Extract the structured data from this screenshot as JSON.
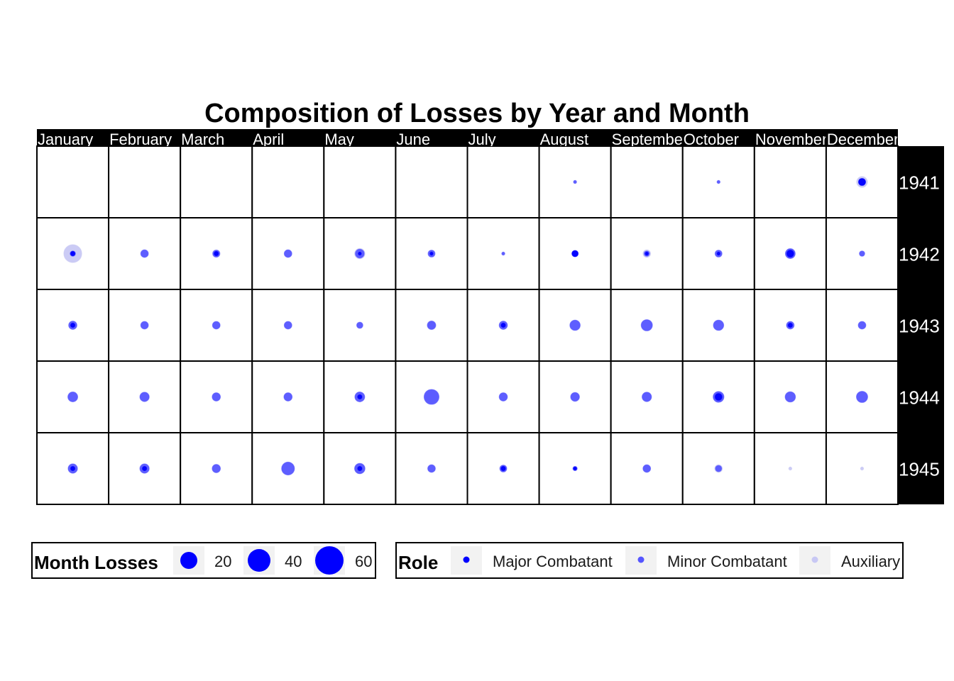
{
  "chart_data": {
    "type": "scatter",
    "title": "Composition of Losses by Year and Month",
    "columns": [
      "January",
      "February",
      "March",
      "April",
      "May",
      "June",
      "July",
      "August",
      "September",
      "October",
      "November",
      "December"
    ],
    "rows": [
      "1941",
      "1942",
      "1943",
      "1944",
      "1945"
    ],
    "roles": [
      "Major Combatant",
      "Minor Combatant",
      "Auxiliary"
    ],
    "colors": {
      "Major Combatant": "#0000ff",
      "Minor Combatant": "#5555ff",
      "Auxiliary": "#c8c8f4",
      "strip_background": "#000000",
      "strip_text": "#ffffff"
    },
    "size_legend": {
      "title": "Month Losses",
      "breaks": [
        20,
        40,
        60
      ]
    },
    "role_legend": {
      "title": "Role",
      "labels": [
        "Major Combatant",
        "Minor Combatant",
        "Auxiliary"
      ]
    },
    "series": [
      {
        "name": "Auxiliary",
        "points": [
          {
            "year": "1941",
            "month": "December",
            "value": 12
          },
          {
            "year": "1942",
            "month": "January",
            "value": 33
          },
          {
            "year": "1942",
            "month": "March",
            "value": 6
          },
          {
            "year": "1942",
            "month": "May",
            "value": 11
          },
          {
            "year": "1942",
            "month": "September",
            "value": 6
          },
          {
            "year": "1942",
            "month": "November",
            "value": 9
          },
          {
            "year": "1943",
            "month": "June",
            "value": 8
          },
          {
            "year": "1944",
            "month": "June",
            "value": 14
          },
          {
            "year": "1944",
            "month": "September",
            "value": 9
          },
          {
            "year": "1944",
            "month": "October",
            "value": 11
          },
          {
            "year": "1945",
            "month": "May",
            "value": 11
          },
          {
            "year": "1945",
            "month": "October",
            "value": 6
          },
          {
            "year": "1945",
            "month": "November",
            "value": 1
          },
          {
            "year": "1945",
            "month": "December",
            "value": 1
          }
        ]
      },
      {
        "name": "Minor Combatant",
        "points": [
          {
            "year": "1941",
            "month": "August",
            "value": 1
          },
          {
            "year": "1941",
            "month": "October",
            "value": 1
          },
          {
            "year": "1941",
            "month": "December",
            "value": 5
          },
          {
            "year": "1942",
            "month": "January",
            "value": 3
          },
          {
            "year": "1942",
            "month": "February",
            "value": 6
          },
          {
            "year": "1942",
            "month": "March",
            "value": 5
          },
          {
            "year": "1942",
            "month": "April",
            "value": 6
          },
          {
            "year": "1942",
            "month": "May",
            "value": 8
          },
          {
            "year": "1942",
            "month": "June",
            "value": 5
          },
          {
            "year": "1942",
            "month": "July",
            "value": 1
          },
          {
            "year": "1942",
            "month": "August",
            "value": 4
          },
          {
            "year": "1942",
            "month": "September",
            "value": 3
          },
          {
            "year": "1942",
            "month": "October",
            "value": 5
          },
          {
            "year": "1942",
            "month": "November",
            "value": 10
          },
          {
            "year": "1942",
            "month": "December",
            "value": 3
          },
          {
            "year": "1943",
            "month": "January",
            "value": 7
          },
          {
            "year": "1943",
            "month": "February",
            "value": 6
          },
          {
            "year": "1943",
            "month": "March",
            "value": 6
          },
          {
            "year": "1943",
            "month": "April",
            "value": 6
          },
          {
            "year": "1943",
            "month": "May",
            "value": 4
          },
          {
            "year": "1943",
            "month": "June",
            "value": 7
          },
          {
            "year": "1943",
            "month": "July",
            "value": 7
          },
          {
            "year": "1943",
            "month": "August",
            "value": 11
          },
          {
            "year": "1943",
            "month": "September",
            "value": 13
          },
          {
            "year": "1943",
            "month": "October",
            "value": 11
          },
          {
            "year": "1943",
            "month": "November",
            "value": 6
          },
          {
            "year": "1943",
            "month": "December",
            "value": 6
          },
          {
            "year": "1944",
            "month": "January",
            "value": 10
          },
          {
            "year": "1944",
            "month": "February",
            "value": 9
          },
          {
            "year": "1944",
            "month": "March",
            "value": 7
          },
          {
            "year": "1944",
            "month": "April",
            "value": 7
          },
          {
            "year": "1944",
            "month": "May",
            "value": 10
          },
          {
            "year": "1944",
            "month": "June",
            "value": 23
          },
          {
            "year": "1944",
            "month": "July",
            "value": 7
          },
          {
            "year": "1944",
            "month": "August",
            "value": 8
          },
          {
            "year": "1944",
            "month": "September",
            "value": 9
          },
          {
            "year": "1944",
            "month": "October",
            "value": 12
          },
          {
            "year": "1944",
            "month": "November",
            "value": 11
          },
          {
            "year": "1944",
            "month": "December",
            "value": 13
          },
          {
            "year": "1945",
            "month": "January",
            "value": 9
          },
          {
            "year": "1945",
            "month": "February",
            "value": 9
          },
          {
            "year": "1945",
            "month": "March",
            "value": 7
          },
          {
            "year": "1945",
            "month": "April",
            "value": 17
          },
          {
            "year": "1945",
            "month": "May",
            "value": 11
          },
          {
            "year": "1945",
            "month": "June",
            "value": 6
          },
          {
            "year": "1945",
            "month": "July",
            "value": 5
          },
          {
            "year": "1945",
            "month": "August",
            "value": 2
          },
          {
            "year": "1945",
            "month": "September",
            "value": 6
          },
          {
            "year": "1945",
            "month": "October",
            "value": 4
          }
        ]
      },
      {
        "name": "Major Combatant",
        "points": [
          {
            "year": "1941",
            "month": "December",
            "value": 5
          },
          {
            "year": "1942",
            "month": "January",
            "value": 2
          },
          {
            "year": "1942",
            "month": "March",
            "value": 2
          },
          {
            "year": "1942",
            "month": "May",
            "value": 1
          },
          {
            "year": "1942",
            "month": "June",
            "value": 1
          },
          {
            "year": "1942",
            "month": "August",
            "value": 4
          },
          {
            "year": "1942",
            "month": "September",
            "value": 1
          },
          {
            "year": "1942",
            "month": "October",
            "value": 1
          },
          {
            "year": "1942",
            "month": "November",
            "value": 5
          },
          {
            "year": "1943",
            "month": "January",
            "value": 2
          },
          {
            "year": "1943",
            "month": "July",
            "value": 2
          },
          {
            "year": "1943",
            "month": "November",
            "value": 2
          },
          {
            "year": "1944",
            "month": "May",
            "value": 2
          },
          {
            "year": "1944",
            "month": "October",
            "value": 5
          },
          {
            "year": "1945",
            "month": "January",
            "value": 2
          },
          {
            "year": "1945",
            "month": "February",
            "value": 2
          },
          {
            "year": "1945",
            "month": "May",
            "value": 2
          },
          {
            "year": "1945",
            "month": "July",
            "value": 2
          },
          {
            "year": "1945",
            "month": "August",
            "value": 1
          }
        ]
      }
    ]
  }
}
